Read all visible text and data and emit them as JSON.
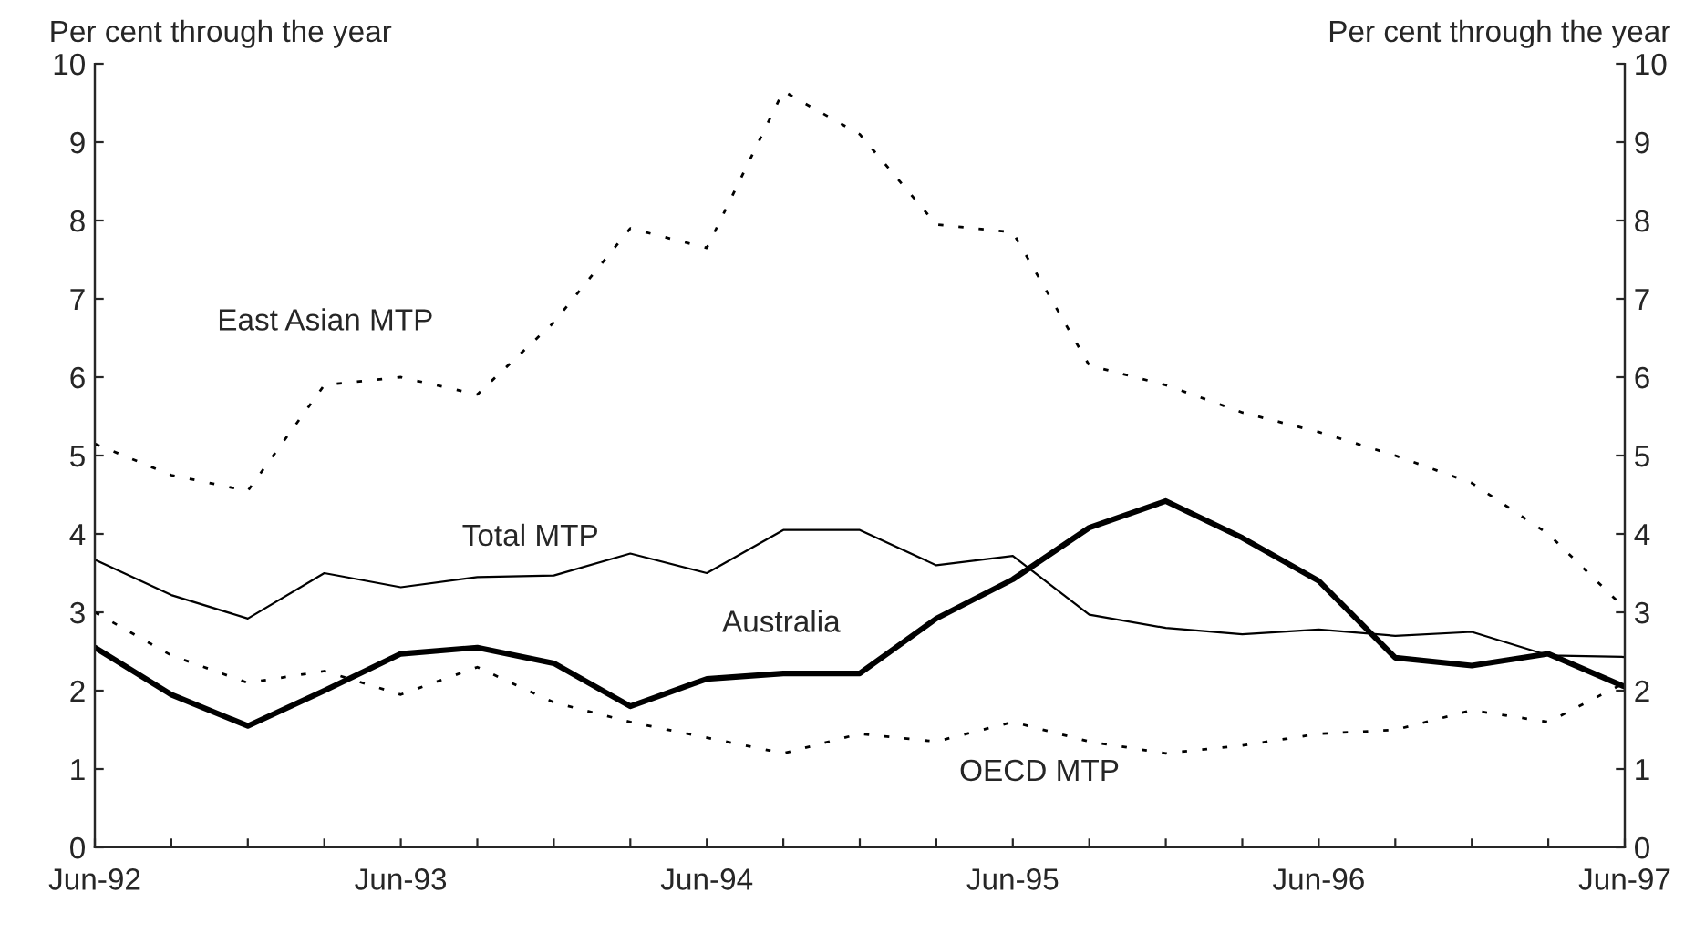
{
  "chart_data": {
    "type": "line",
    "ylabel": "Per cent through the year",
    "y2label": "Per cent through the year",
    "categories": [
      "Jun-92",
      null,
      null,
      null,
      "Jun-93",
      null,
      null,
      null,
      "Jun-94",
      null,
      null,
      null,
      "Jun-95",
      null,
      null,
      null,
      "Jun-96",
      null,
      null,
      null,
      "Jun-97"
    ],
    "ylim": [
      0,
      10
    ],
    "yticks": [
      0,
      1,
      2,
      3,
      4,
      5,
      6,
      7,
      8,
      9,
      10
    ],
    "y2lim": [
      0,
      10
    ],
    "y2ticks": [
      0,
      1,
      2,
      3,
      4,
      5,
      6,
      7,
      8,
      9,
      10
    ],
    "grid": false,
    "legend": false,
    "series": [
      {
        "name": "East Asian MTP",
        "color": "#000000",
        "line_style": "dotted",
        "values": [
          5.15,
          4.75,
          4.55,
          5.9,
          6.0,
          5.78,
          6.7,
          7.9,
          7.65,
          9.65,
          9.1,
          7.95,
          7.85,
          6.15,
          5.9,
          5.55,
          5.3,
          5.0,
          4.65,
          4.0,
          3.05
        ]
      },
      {
        "name": "Total MTP",
        "color": "#000000",
        "line_style": "solid",
        "values": [
          3.67,
          3.22,
          2.92,
          3.5,
          3.32,
          3.45,
          3.47,
          3.75,
          3.5,
          4.05,
          4.05,
          3.6,
          3.72,
          2.97,
          2.8,
          2.72,
          2.78,
          2.7,
          2.75,
          2.45,
          2.43
        ]
      },
      {
        "name": "Australia",
        "color": "#000000",
        "line_style": "solid",
        "values": [
          2.55,
          1.95,
          1.55,
          2.0,
          2.47,
          2.55,
          2.35,
          1.8,
          2.15,
          2.22,
          2.22,
          2.92,
          3.42,
          4.08,
          4.42,
          3.95,
          3.4,
          2.42,
          2.32,
          2.47,
          2.05
        ]
      },
      {
        "name": "OECD MTP",
        "color": "#000000",
        "line_style": "dotted",
        "values": [
          3.0,
          2.45,
          2.1,
          2.25,
          1.95,
          2.3,
          1.85,
          1.6,
          1.4,
          1.2,
          1.45,
          1.35,
          1.6,
          1.35,
          1.2,
          1.3,
          1.45,
          1.5,
          1.75,
          1.6,
          2.1
        ]
      }
    ]
  }
}
